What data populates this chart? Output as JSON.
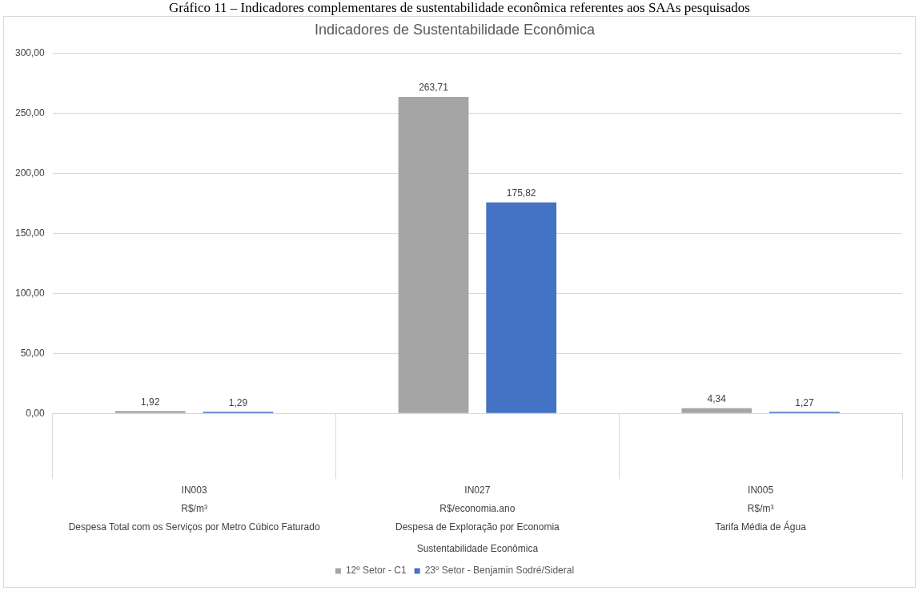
{
  "chart_data": {
    "type": "bar",
    "title": "Indicadores de Sustentabilidade Econômica",
    "annotations": [
      "Gráfico 11 – Indicadores complementares de sustentabilidade econômica referentes aos SAAs pesquisados"
    ],
    "categories": [
      "IN003\nR$/m³\nDespesa Total com os Serviços por Metro Cúbico Faturado",
      "IN027\nR$/economia.ano\nDespesa de Exploração por Economia",
      "IN005\nR$/m³\nTarifa Média de Água"
    ],
    "xlabel": "Sustentabilidade Econômica",
    "series": [
      {
        "name": "12º Setor - C1",
        "color": "#a5a5a5",
        "values": [
          1.92,
          263.71,
          4.34
        ],
        "value_labels": [
          "1,92",
          "263,71",
          "4,34"
        ]
      },
      {
        "name": "23º Setor - Benjamin Sodré/Sideral",
        "color": "#4472c4",
        "values": [
          1.29,
          175.82,
          1.27
        ],
        "value_labels": [
          "1,29",
          "175,82",
          "1,27"
        ]
      }
    ],
    "ylim": [
      0,
      300
    ],
    "yticks": [
      {
        "value": 0,
        "label": "0,00"
      },
      {
        "value": 50,
        "label": "50,00"
      },
      {
        "value": 100,
        "label": "100,00"
      },
      {
        "value": 150,
        "label": "150,00"
      },
      {
        "value": 200,
        "label": "200,00"
      },
      {
        "value": 250,
        "label": "250,00"
      },
      {
        "value": 300,
        "label": "300,00"
      }
    ],
    "grid": "y",
    "legend": "bottom"
  }
}
